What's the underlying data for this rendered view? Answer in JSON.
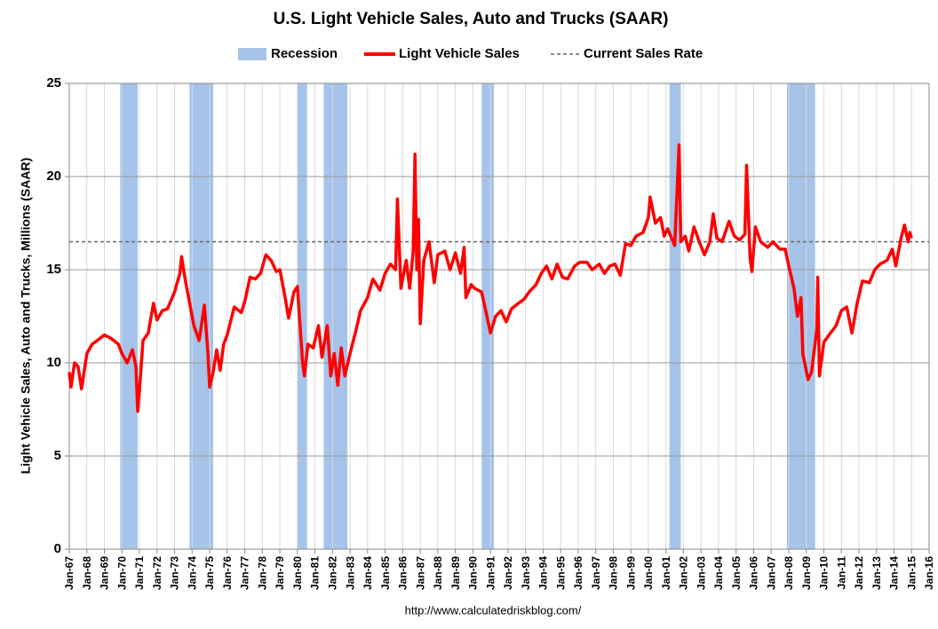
{
  "chart_data": {
    "type": "line",
    "title": "U.S. Light Vehicle Sales, Auto and Trucks (SAAR)",
    "ylabel": "Light Vehicle Sales, Auto and Trucks, Millions (SAAR)",
    "source": "http://www.calculatedriskblog.com/",
    "legend": "top",
    "grid": true,
    "xlim": [
      1967,
      2016
    ],
    "ylim": [
      0,
      25
    ],
    "yticks": [
      0,
      5,
      10,
      15,
      20,
      25
    ],
    "xticks": [
      {
        "value": 1967,
        "label": "Jan-67"
      },
      {
        "value": 1968,
        "label": "Jan-68"
      },
      {
        "value": 1969,
        "label": "Jan-69"
      },
      {
        "value": 1970,
        "label": "Jan-70"
      },
      {
        "value": 1971,
        "label": "Jan-71"
      },
      {
        "value": 1972,
        "label": "Jan-72"
      },
      {
        "value": 1973,
        "label": "Jan-73"
      },
      {
        "value": 1974,
        "label": "Jan-74"
      },
      {
        "value": 1975,
        "label": "Jan-75"
      },
      {
        "value": 1976,
        "label": "Jan-76"
      },
      {
        "value": 1977,
        "label": "Jan-77"
      },
      {
        "value": 1978,
        "label": "Jan-78"
      },
      {
        "value": 1979,
        "label": "Jan-79"
      },
      {
        "value": 1980,
        "label": "Jan-80"
      },
      {
        "value": 1981,
        "label": "Jan-81"
      },
      {
        "value": 1982,
        "label": "Jan-82"
      },
      {
        "value": 1983,
        "label": "Jan-83"
      },
      {
        "value": 1984,
        "label": "Jan-84"
      },
      {
        "value": 1985,
        "label": "Jan-85"
      },
      {
        "value": 1986,
        "label": "Jan-86"
      },
      {
        "value": 1987,
        "label": "Jan-87"
      },
      {
        "value": 1988,
        "label": "Jan-88"
      },
      {
        "value": 1989,
        "label": "Jan-89"
      },
      {
        "value": 1990,
        "label": "Jan-90"
      },
      {
        "value": 1991,
        "label": "Jan-91"
      },
      {
        "value": 1992,
        "label": "Jan-92"
      },
      {
        "value": 1993,
        "label": "Jan-93"
      },
      {
        "value": 1994,
        "label": "Jan-94"
      },
      {
        "value": 1995,
        "label": "Jan-95"
      },
      {
        "value": 1996,
        "label": "Jan-96"
      },
      {
        "value": 1997,
        "label": "Jan-97"
      },
      {
        "value": 1998,
        "label": "Jan-98"
      },
      {
        "value": 1999,
        "label": "Jan-99"
      },
      {
        "value": 2000,
        "label": "Jan-00"
      },
      {
        "value": 2001,
        "label": "Jan-01"
      },
      {
        "value": 2002,
        "label": "Jan-02"
      },
      {
        "value": 2003,
        "label": "Jan-03"
      },
      {
        "value": 2004,
        "label": "Jan-04"
      },
      {
        "value": 2005,
        "label": "Jan-05"
      },
      {
        "value": 2006,
        "label": "Jan-06"
      },
      {
        "value": 2007,
        "label": "Jan-07"
      },
      {
        "value": 2008,
        "label": "Jan-08"
      },
      {
        "value": 2009,
        "label": "Jan-09"
      },
      {
        "value": 2010,
        "label": "Jan-10"
      },
      {
        "value": 2011,
        "label": "Jan-11"
      },
      {
        "value": 2012,
        "label": "Jan-12"
      },
      {
        "value": 2013,
        "label": "Jan-13"
      },
      {
        "value": 2014,
        "label": "Jan-14"
      },
      {
        "value": 2015,
        "label": "Jan-15"
      },
      {
        "value": 2016,
        "label": "Jan-16"
      }
    ],
    "recession": {
      "name": "Recession",
      "color": "#a6c3ea",
      "periods": [
        [
          1969.9,
          1970.9
        ],
        [
          1973.85,
          1975.2
        ],
        [
          1980.0,
          1980.55
        ],
        [
          1981.5,
          1982.85
        ],
        [
          1990.5,
          1991.2
        ],
        [
          2001.2,
          2001.85
        ],
        [
          2007.9,
          2009.5
        ]
      ]
    },
    "reference_line": {
      "name": "Current Sales Rate",
      "value": 16.5,
      "color": "#666666",
      "style": "dashed"
    },
    "series": [
      {
        "name": "Light Vehicle Sales",
        "color": "#ff0000",
        "x": [
          1967.0,
          1967.1,
          1967.3,
          1967.5,
          1967.7,
          1968.0,
          1968.3,
          1968.6,
          1969.0,
          1969.4,
          1969.8,
          1970.0,
          1970.3,
          1970.6,
          1970.8,
          1970.9,
          1971.0,
          1971.2,
          1971.5,
          1971.8,
          1972.0,
          1972.3,
          1972.6,
          1973.0,
          1973.3,
          1973.4,
          1973.6,
          1973.9,
          1974.1,
          1974.4,
          1974.7,
          1974.9,
          1975.0,
          1975.2,
          1975.4,
          1975.6,
          1975.8,
          1976.0,
          1976.4,
          1976.8,
          1977.0,
          1977.3,
          1977.6,
          1977.9,
          1978.2,
          1978.5,
          1978.8,
          1979.0,
          1979.3,
          1979.5,
          1979.8,
          1980.0,
          1980.3,
          1980.4,
          1980.6,
          1980.9,
          1981.2,
          1981.4,
          1981.7,
          1981.9,
          1982.1,
          1982.3,
          1982.5,
          1982.7,
          1983.0,
          1983.3,
          1983.6,
          1984.0,
          1984.3,
          1984.7,
          1985.0,
          1985.3,
          1985.6,
          1985.7,
          1985.9,
          1986.2,
          1986.4,
          1986.6,
          1986.7,
          1986.8,
          1986.9,
          1987.0,
          1987.2,
          1987.5,
          1987.8,
          1988.0,
          1988.4,
          1988.7,
          1989.0,
          1989.3,
          1989.5,
          1989.6,
          1989.9,
          1990.1,
          1990.5,
          1990.8,
          1991.0,
          1991.3,
          1991.6,
          1991.9,
          1992.2,
          1992.6,
          1992.9,
          1993.2,
          1993.6,
          1993.9,
          1994.2,
          1994.5,
          1994.8,
          1995.1,
          1995.4,
          1995.8,
          1996.1,
          1996.5,
          1996.8,
          1997.2,
          1997.5,
          1997.8,
          1998.1,
          1998.4,
          1998.7,
          1999.0,
          1999.3,
          1999.7,
          2000.0,
          2000.1,
          2000.4,
          2000.7,
          2000.9,
          2001.1,
          2001.5,
          2001.75,
          2001.85,
          2002.1,
          2002.3,
          2002.6,
          2002.9,
          2003.2,
          2003.5,
          2003.7,
          2003.9,
          2004.2,
          2004.6,
          2004.9,
          2005.2,
          2005.5,
          2005.6,
          2005.8,
          2005.9,
          2006.1,
          2006.4,
          2006.8,
          2007.1,
          2007.5,
          2007.8,
          2008.0,
          2008.3,
          2008.5,
          2008.7,
          2008.8,
          2009.1,
          2009.3,
          2009.6,
          2009.65,
          2009.75,
          2010.0,
          2010.3,
          2010.7,
          2011.0,
          2011.3,
          2011.6,
          2011.9,
          2012.2,
          2012.6,
          2012.9,
          2013.2,
          2013.6,
          2013.9,
          2014.1,
          2014.4,
          2014.6,
          2014.8,
          2014.9,
          2015.0
        ],
        "values": [
          9.5,
          8.7,
          10.0,
          9.8,
          8.6,
          10.5,
          11.0,
          11.2,
          11.5,
          11.3,
          11.0,
          10.5,
          10.0,
          10.7,
          9.8,
          7.4,
          8.5,
          11.2,
          11.6,
          13.2,
          12.3,
          12.8,
          12.9,
          13.8,
          14.8,
          15.7,
          14.5,
          13.0,
          12.0,
          11.2,
          13.1,
          10.5,
          8.7,
          9.5,
          10.7,
          9.6,
          11.0,
          11.5,
          13.0,
          12.7,
          13.3,
          14.6,
          14.5,
          14.8,
          15.8,
          15.5,
          14.9,
          15.0,
          13.5,
          12.4,
          13.8,
          14.1,
          10.0,
          9.3,
          11.0,
          10.8,
          12.0,
          10.3,
          12.0,
          9.3,
          10.5,
          8.8,
          10.8,
          9.3,
          10.5,
          11.6,
          12.8,
          13.5,
          14.5,
          13.9,
          14.8,
          15.3,
          15.0,
          18.8,
          14.0,
          15.5,
          14.0,
          16.0,
          21.2,
          15.0,
          17.7,
          12.1,
          15.5,
          16.5,
          14.3,
          15.8,
          16.0,
          15.0,
          15.9,
          14.8,
          16.2,
          13.5,
          14.2,
          14.0,
          13.8,
          12.5,
          11.6,
          12.5,
          12.8,
          12.2,
          12.9,
          13.2,
          13.4,
          13.8,
          14.2,
          14.8,
          15.2,
          14.5,
          15.3,
          14.6,
          14.5,
          15.2,
          15.4,
          15.4,
          15.0,
          15.3,
          14.8,
          15.2,
          15.3,
          14.7,
          16.4,
          16.3,
          16.8,
          17.0,
          17.8,
          18.9,
          17.5,
          17.8,
          16.8,
          17.2,
          16.3,
          21.7,
          16.5,
          16.8,
          16.0,
          17.3,
          16.5,
          15.8,
          16.5,
          18.0,
          16.7,
          16.5,
          17.6,
          16.8,
          16.6,
          16.9,
          20.6,
          15.6,
          14.9,
          17.3,
          16.5,
          16.2,
          16.5,
          16.1,
          16.1,
          15.2,
          14.0,
          12.5,
          13.5,
          10.5,
          9.1,
          9.5,
          11.8,
          14.6,
          9.3,
          11.1,
          11.5,
          12.0,
          12.8,
          13.0,
          11.6,
          13.2,
          14.4,
          14.3,
          15.0,
          15.3,
          15.5,
          16.1,
          15.2,
          16.7,
          17.4,
          16.5,
          17.0,
          16.7
        ]
      }
    ]
  }
}
